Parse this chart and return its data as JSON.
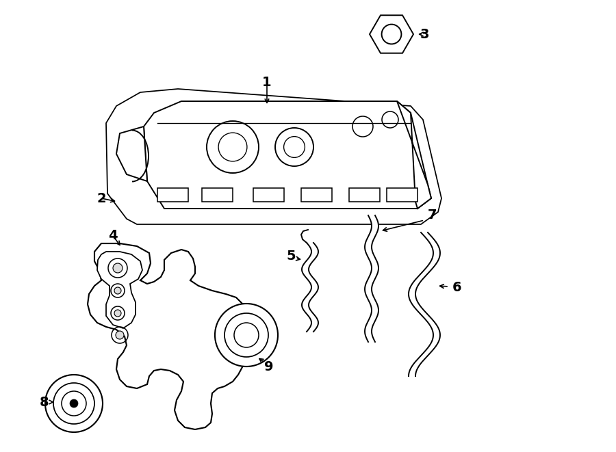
{
  "background_color": "#ffffff",
  "line_color": "#000000",
  "line_width": 1.4,
  "label_fontsize": 14,
  "figsize": [
    9.0,
    6.61
  ],
  "dpi": 100
}
